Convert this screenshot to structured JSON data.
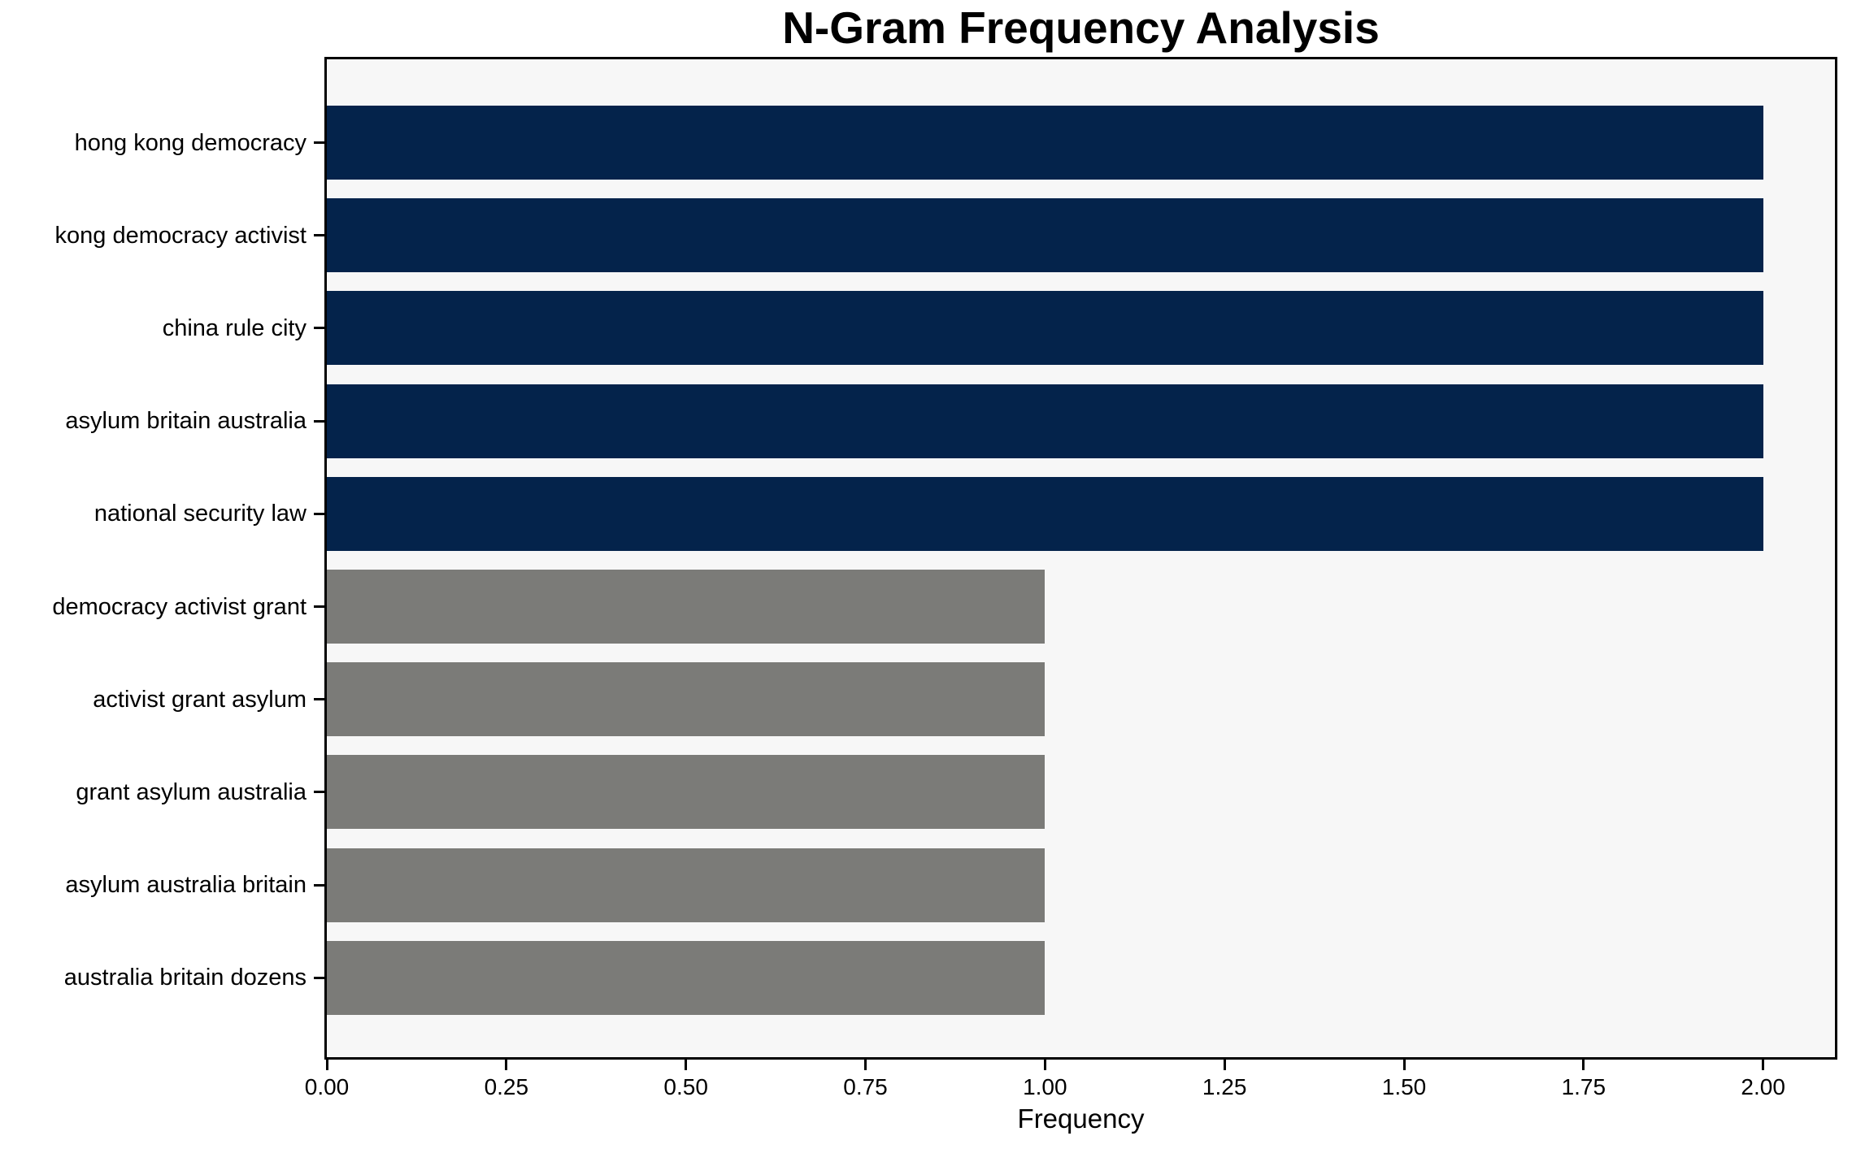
{
  "chart_data": {
    "type": "bar",
    "orientation": "horizontal",
    "title": "N-Gram Frequency Analysis",
    "xlabel": "Frequency",
    "ylabel": "",
    "categories": [
      "hong kong democracy",
      "kong democracy activist",
      "china rule city",
      "asylum britain australia",
      "national security law",
      "democracy activist grant",
      "activist grant asylum",
      "grant asylum australia",
      "asylum australia britain",
      "australia britain dozens"
    ],
    "values": [
      2,
      2,
      2,
      2,
      2,
      1,
      1,
      1,
      1,
      1
    ],
    "bar_colors": [
      "#04234b",
      "#04234b",
      "#04234b",
      "#04234b",
      "#04234b",
      "#7b7b78",
      "#7b7b78",
      "#7b7b78",
      "#7b7b78",
      "#7b7b78"
    ],
    "xlim": [
      0,
      2.1
    ],
    "xticks": [
      0,
      0.25,
      0.5,
      0.75,
      1.0,
      1.25,
      1.5,
      1.75,
      2.0
    ],
    "xtick_labels": [
      "0.00",
      "0.25",
      "0.50",
      "0.75",
      "1.00",
      "1.25",
      "1.50",
      "1.75",
      "2.00"
    ],
    "grid": false,
    "legend": false,
    "plot_background": "#f7f7f7",
    "figure_background": "#ffffff",
    "spine_color": "#000000",
    "value_color_map": {
      "frequency_2": "#04234b",
      "frequency_1": "#7b7b78"
    }
  }
}
